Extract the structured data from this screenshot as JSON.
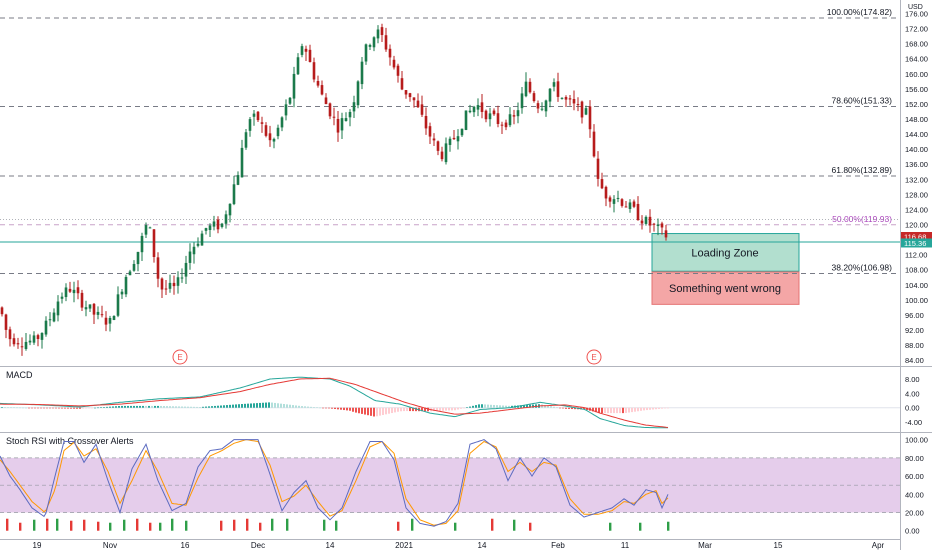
{
  "currency": "USD",
  "chart_data": {
    "type": "candlestick",
    "x_ticks": [
      "19",
      "Nov",
      "16",
      "Dec",
      "14",
      "2021",
      "14",
      "Feb",
      "11",
      "Mar",
      "15",
      "Apr"
    ],
    "price_axis": {
      "ylim": [
        83.5,
        178
      ],
      "ticks": [
        84,
        88,
        92,
        96,
        100,
        104,
        108,
        112,
        116,
        120,
        124,
        128,
        132,
        136,
        140,
        144,
        148,
        152,
        156,
        160,
        164,
        168,
        172,
        176
      ]
    },
    "price_labels": {
      "last": "116.68",
      "line": "115.36"
    },
    "fib_levels": [
      {
        "label": "100.00%(174.82)",
        "value": 174.82
      },
      {
        "label": "78.60%(151.33)",
        "value": 151.33
      },
      {
        "label": "61.80%(132.89)",
        "value": 132.89
      },
      {
        "label": "50.00%(119.93)",
        "value": 119.93
      },
      {
        "label": "38.20%(106.98)",
        "value": 106.98
      }
    ],
    "horizontal_line": 115.36,
    "zones": [
      {
        "label": "Loading Zone",
        "top": 117.6,
        "bottom": 107.6,
        "color": "#b2dfcf"
      },
      {
        "label": "Something went wrong",
        "top": 107.4,
        "bottom": 98.8,
        "color": "#f4a6a6"
      }
    ],
    "earnings_markers": [
      "E",
      "E"
    ],
    "close_anchors": [
      [
        0,
        98
      ],
      [
        8,
        90
      ],
      [
        22,
        89
      ],
      [
        35,
        89
      ],
      [
        48,
        94
      ],
      [
        60,
        101
      ],
      [
        70,
        103
      ],
      [
        80,
        100
      ],
      [
        95,
        96
      ],
      [
        110,
        94
      ],
      [
        125,
        106
      ],
      [
        138,
        113
      ],
      [
        148,
        121
      ],
      [
        160,
        103
      ],
      [
        176,
        103
      ],
      [
        190,
        113
      ],
      [
        206,
        119
      ],
      [
        222,
        120
      ],
      [
        238,
        134
      ],
      [
        248,
        148
      ],
      [
        258,
        148
      ],
      [
        272,
        141
      ],
      [
        290,
        154
      ],
      [
        303,
        169
      ],
      [
        312,
        161
      ],
      [
        322,
        154
      ],
      [
        338,
        146
      ],
      [
        352,
        151
      ],
      [
        362,
        164
      ],
      [
        372,
        170
      ],
      [
        380,
        171
      ],
      [
        388,
        166
      ],
      [
        402,
        156
      ],
      [
        412,
        154
      ],
      [
        424,
        147
      ],
      [
        440,
        138
      ],
      [
        452,
        142
      ],
      [
        464,
        148
      ],
      [
        476,
        152
      ],
      [
        488,
        149
      ],
      [
        500,
        147
      ],
      [
        514,
        148
      ],
      [
        526,
        157
      ],
      [
        540,
        151
      ],
      [
        552,
        157
      ],
      [
        564,
        153
      ],
      [
        576,
        151
      ],
      [
        588,
        149
      ],
      [
        592,
        143
      ],
      [
        598,
        131
      ],
      [
        606,
        128
      ],
      [
        618,
        127
      ],
      [
        632,
        124
      ],
      [
        644,
        121
      ],
      [
        656,
        119
      ],
      [
        668,
        116.68
      ]
    ],
    "macd": {
      "title": "MACD",
      "ylim": [
        -6.2,
        10.5
      ],
      "ticks": [
        8.0,
        4.0,
        0.0,
        -4.0
      ],
      "macd_line": [
        [
          0,
          1.2
        ],
        [
          40,
          0.8
        ],
        [
          80,
          0.2
        ],
        [
          120,
          1.5
        ],
        [
          160,
          2.5
        ],
        [
          200,
          3
        ],
        [
          240,
          5.5
        ],
        [
          270,
          8
        ],
        [
          300,
          8.5
        ],
        [
          330,
          8
        ],
        [
          350,
          6
        ],
        [
          375,
          2
        ],
        [
          400,
          1
        ],
        [
          430,
          -1.5
        ],
        [
          455,
          -2.5
        ],
        [
          480,
          -0.5
        ],
        [
          510,
          0
        ],
        [
          540,
          1.5
        ],
        [
          565,
          0.5
        ],
        [
          585,
          -0.5
        ],
        [
          600,
          -3
        ],
        [
          625,
          -5
        ],
        [
          645,
          -5.5
        ],
        [
          668,
          -5.6
        ]
      ],
      "signal_line": [
        [
          0,
          1
        ],
        [
          40,
          0.9
        ],
        [
          80,
          0.5
        ],
        [
          120,
          1
        ],
        [
          160,
          2
        ],
        [
          200,
          2.8
        ],
        [
          240,
          4.5
        ],
        [
          270,
          6.5
        ],
        [
          300,
          8
        ],
        [
          330,
          8.2
        ],
        [
          355,
          6.5
        ],
        [
          380,
          4
        ],
        [
          405,
          1.5
        ],
        [
          430,
          -0.5
        ],
        [
          455,
          -1.8
        ],
        [
          480,
          -1.5
        ],
        [
          510,
          -0.5
        ],
        [
          540,
          0.5
        ],
        [
          565,
          0.8
        ],
        [
          585,
          0
        ],
        [
          600,
          -1.5
        ],
        [
          625,
          -3.5
        ],
        [
          645,
          -4.8
        ],
        [
          668,
          -5.5
        ]
      ]
    },
    "stoch_rsi": {
      "title": "Stoch RSI with Crossover Alerts",
      "ylim": [
        -8,
        104
      ],
      "ticks": [
        100.0,
        80.0,
        60.0,
        40.0,
        20.0,
        0.0
      ],
      "band": [
        20,
        80
      ],
      "k_line": [
        [
          0,
          82
        ],
        [
          10,
          60
        ],
        [
          20,
          45
        ],
        [
          32,
          25
        ],
        [
          45,
          15
        ],
        [
          55,
          60
        ],
        [
          64,
          98
        ],
        [
          74,
          98
        ],
        [
          84,
          75
        ],
        [
          96,
          95
        ],
        [
          108,
          55
        ],
        [
          120,
          20
        ],
        [
          132,
          68
        ],
        [
          146,
          95
        ],
        [
          158,
          55
        ],
        [
          172,
          22
        ],
        [
          186,
          30
        ],
        [
          198,
          70
        ],
        [
          210,
          88
        ],
        [
          222,
          90
        ],
        [
          234,
          100
        ],
        [
          246,
          100
        ],
        [
          258,
          100
        ],
        [
          270,
          62
        ],
        [
          282,
          22
        ],
        [
          294,
          42
        ],
        [
          306,
          55
        ],
        [
          318,
          25
        ],
        [
          330,
          12
        ],
        [
          342,
          25
        ],
        [
          356,
          65
        ],
        [
          370,
          98
        ],
        [
          382,
          98
        ],
        [
          394,
          78
        ],
        [
          406,
          25
        ],
        [
          420,
          8
        ],
        [
          434,
          5
        ],
        [
          446,
          10
        ],
        [
          458,
          30
        ],
        [
          470,
          95
        ],
        [
          484,
          100
        ],
        [
          496,
          90
        ],
        [
          508,
          55
        ],
        [
          520,
          80
        ],
        [
          532,
          60
        ],
        [
          544,
          80
        ],
        [
          556,
          70
        ],
        [
          570,
          28
        ],
        [
          584,
          15
        ],
        [
          598,
          20
        ],
        [
          612,
          25
        ],
        [
          624,
          35
        ],
        [
          634,
          28
        ],
        [
          646,
          45
        ],
        [
          656,
          42
        ],
        [
          662,
          25
        ],
        [
          668,
          40
        ]
      ],
      "d_line": [
        [
          0,
          78
        ],
        [
          10,
          65
        ],
        [
          20,
          50
        ],
        [
          32,
          32
        ],
        [
          45,
          20
        ],
        [
          55,
          45
        ],
        [
          64,
          88
        ],
        [
          74,
          97
        ],
        [
          84,
          82
        ],
        [
          96,
          90
        ],
        [
          108,
          65
        ],
        [
          120,
          30
        ],
        [
          132,
          55
        ],
        [
          146,
          88
        ],
        [
          158,
          65
        ],
        [
          172,
          30
        ],
        [
          186,
          28
        ],
        [
          198,
          58
        ],
        [
          210,
          82
        ],
        [
          222,
          88
        ],
        [
          234,
          96
        ],
        [
          246,
          100
        ],
        [
          258,
          98
        ],
        [
          270,
          72
        ],
        [
          282,
          32
        ],
        [
          294,
          38
        ],
        [
          306,
          50
        ],
        [
          318,
          32
        ],
        [
          330,
          16
        ],
        [
          342,
          22
        ],
        [
          356,
          55
        ],
        [
          370,
          92
        ],
        [
          382,
          98
        ],
        [
          394,
          85
        ],
        [
          406,
          35
        ],
        [
          420,
          12
        ],
        [
          434,
          6
        ],
        [
          446,
          8
        ],
        [
          458,
          22
        ],
        [
          470,
          85
        ],
        [
          484,
          98
        ],
        [
          496,
          92
        ],
        [
          508,
          65
        ],
        [
          520,
          75
        ],
        [
          532,
          65
        ],
        [
          544,
          75
        ],
        [
          556,
          72
        ],
        [
          570,
          35
        ],
        [
          584,
          18
        ],
        [
          598,
          18
        ],
        [
          612,
          22
        ],
        [
          624,
          32
        ],
        [
          634,
          30
        ],
        [
          646,
          40
        ],
        [
          656,
          44
        ],
        [
          662,
          30
        ],
        [
          668,
          36
        ]
      ],
      "alert_bars": [
        [
          7,
          "r"
        ],
        [
          20,
          "r"
        ],
        [
          34,
          "g"
        ],
        [
          47,
          "r"
        ],
        [
          57,
          "g"
        ],
        [
          71,
          "r"
        ],
        [
          84,
          "r"
        ],
        [
          98,
          "r"
        ],
        [
          110,
          "g"
        ],
        [
          124,
          "g"
        ],
        [
          137,
          "r"
        ],
        [
          150,
          "r"
        ],
        [
          160,
          "g"
        ],
        [
          172,
          "g"
        ],
        [
          186,
          "g"
        ],
        [
          221,
          "r"
        ],
        [
          234,
          "r"
        ],
        [
          247,
          "r"
        ],
        [
          260,
          "r"
        ],
        [
          272,
          "g"
        ],
        [
          287,
          "g"
        ],
        [
          324,
          "g"
        ],
        [
          336,
          "g"
        ],
        [
          398,
          "r"
        ],
        [
          412,
          "g"
        ],
        [
          455,
          "g"
        ],
        [
          492,
          "r"
        ],
        [
          514,
          "g"
        ],
        [
          530,
          "r"
        ],
        [
          610,
          "g"
        ],
        [
          640,
          "g"
        ],
        [
          668,
          "g"
        ]
      ]
    }
  }
}
